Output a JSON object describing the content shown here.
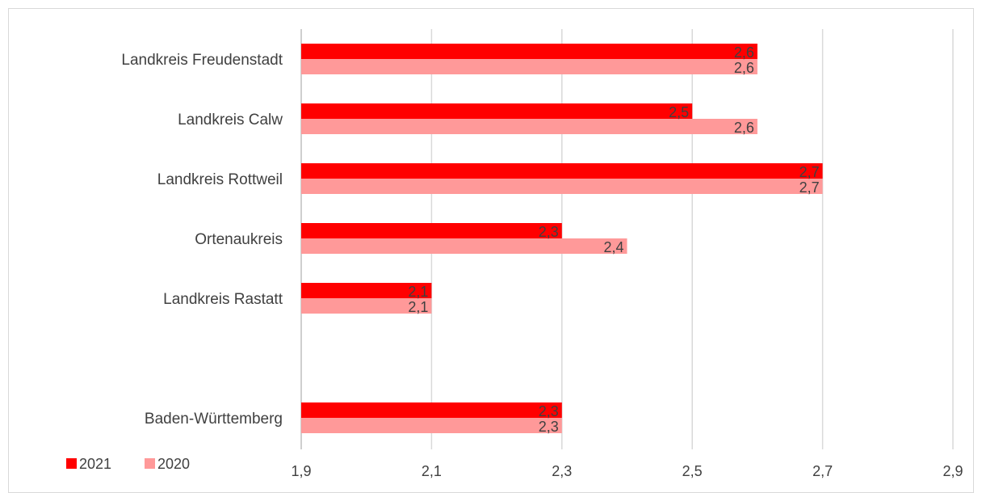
{
  "chart_data": {
    "type": "bar",
    "orientation": "horizontal",
    "categories": [
      "Landkreis Freudenstadt",
      "Landkreis Calw",
      "Landkreis Rottweil",
      "Ortenaukreis",
      "Landkreis Rastatt",
      "",
      "Baden-Württemberg"
    ],
    "series": [
      {
        "name": "2021",
        "color": "#ff0000",
        "values": [
          2.6,
          2.5,
          2.7,
          2.3,
          2.1,
          null,
          2.3
        ],
        "labels": [
          "2,6",
          "2,5",
          "2,7",
          "2,3",
          "2,1",
          "",
          "2,3"
        ]
      },
      {
        "name": "2020",
        "color": "#ff9999",
        "values": [
          2.6,
          2.6,
          2.7,
          2.4,
          2.1,
          null,
          2.3
        ],
        "labels": [
          "2,6",
          "2,6",
          "2,7",
          "2,4",
          "2,1",
          "",
          "2,3"
        ]
      }
    ],
    "xlim": [
      1.9,
      2.9
    ],
    "xticks": [
      1.9,
      2.1,
      2.3,
      2.5,
      2.7,
      2.9
    ],
    "xtick_labels": [
      "1,9",
      "2,1",
      "2,3",
      "2,5",
      "2,7",
      "2,9"
    ],
    "gridlines": "vertical",
    "legend": "bottom-left",
    "data_labels": true
  }
}
